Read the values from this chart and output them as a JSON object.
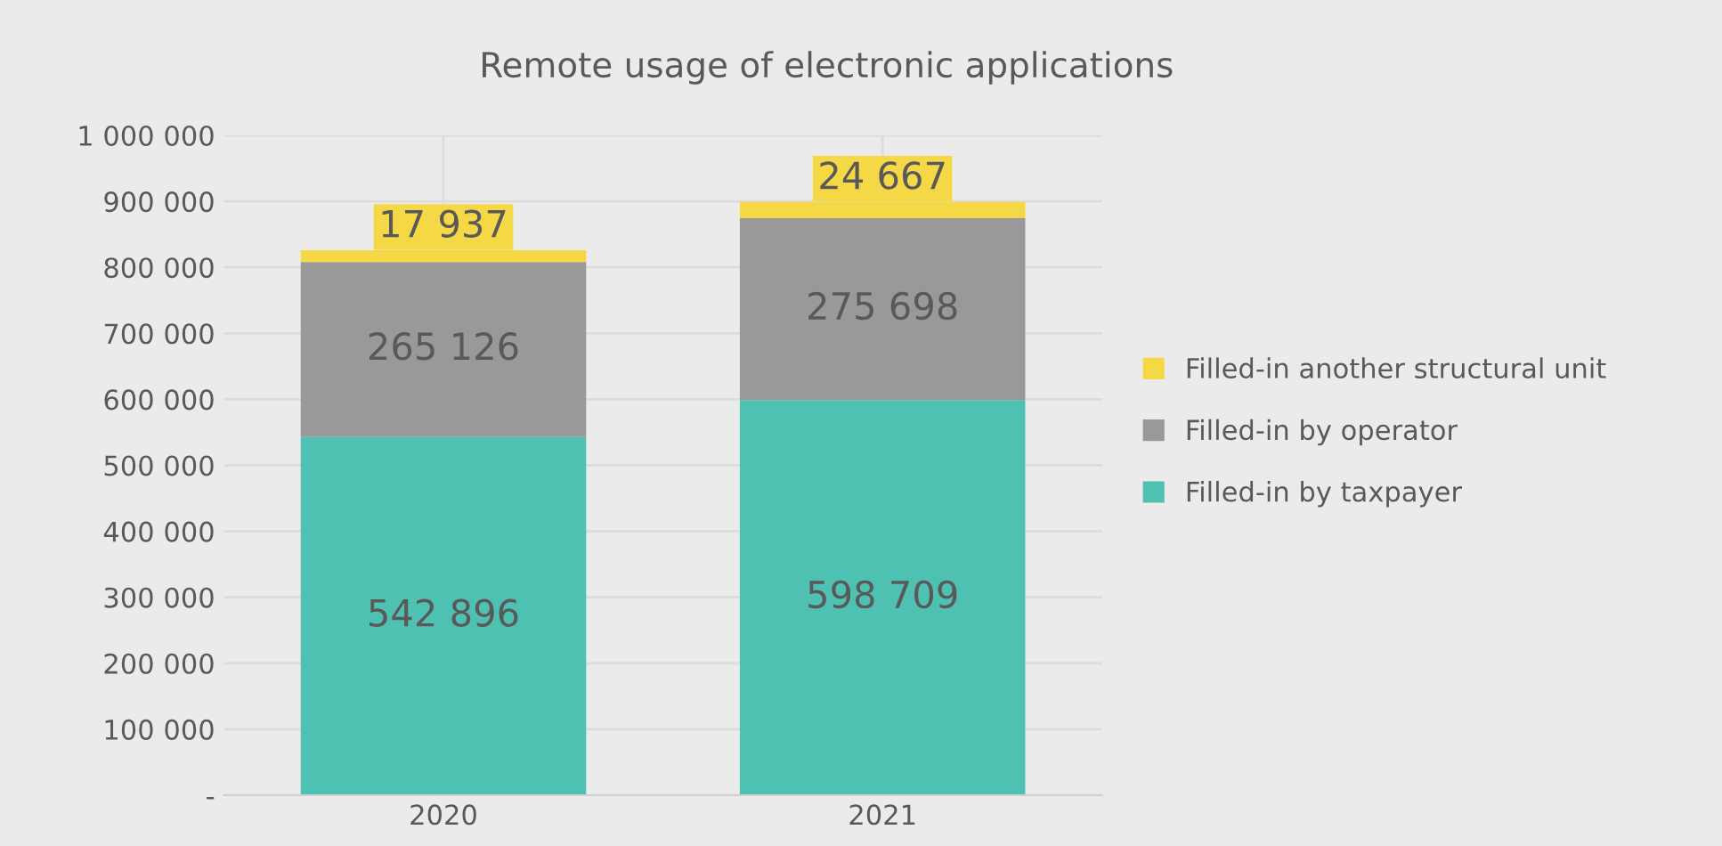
{
  "chart_data": {
    "type": "bar",
    "title": "Remote usage of electronic applications",
    "stacked": true,
    "categories": [
      "2020",
      "2021"
    ],
    "series": [
      {
        "name": "Filled-in by taxpayer",
        "color": "#4fc1b2",
        "values": [
          542896,
          598709
        ],
        "value_labels": [
          "542 896",
          "598 709"
        ]
      },
      {
        "name": "Filled-in by operator",
        "color": "#999999",
        "values": [
          265126,
          275698
        ],
        "value_labels": [
          "265 126",
          "275 698"
        ]
      },
      {
        "name": "Filled-in another structural unit",
        "color": "#f5d845",
        "values": [
          17937,
          24667
        ],
        "value_labels": [
          "17 937",
          "24 667"
        ]
      }
    ],
    "ylim": [
      0,
      1000000
    ],
    "yticks": [
      {
        "value": 0,
        "label": "-"
      },
      {
        "value": 100000,
        "label": "100 000"
      },
      {
        "value": 200000,
        "label": "200 000"
      },
      {
        "value": 300000,
        "label": "300 000"
      },
      {
        "value": 400000,
        "label": "400 000"
      },
      {
        "value": 500000,
        "label": "500 000"
      },
      {
        "value": 600000,
        "label": "600 000"
      },
      {
        "value": 700000,
        "label": "700 000"
      },
      {
        "value": 800000,
        "label": "800 000"
      },
      {
        "value": 900000,
        "label": "900 000"
      },
      {
        "value": 1000000,
        "label": "1 000 000"
      }
    ],
    "grid": true,
    "legend": "right"
  }
}
